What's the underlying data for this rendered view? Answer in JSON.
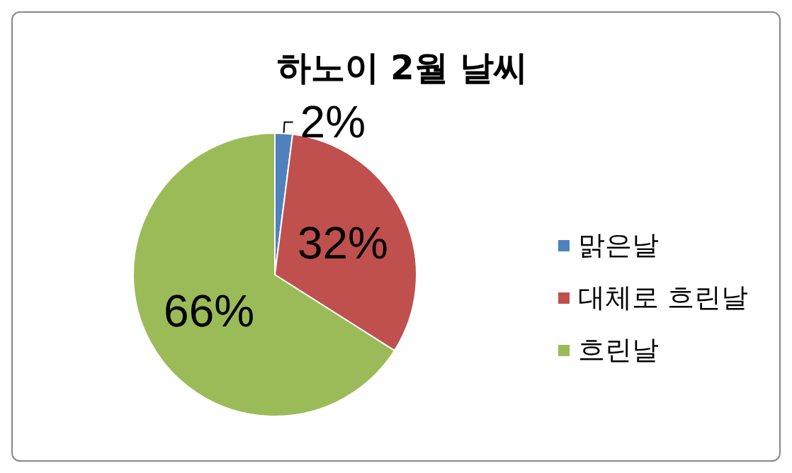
{
  "chart_data": {
    "type": "pie",
    "title": "하노이 2월 날씨",
    "categories": [
      "맑은날",
      "대체로 흐린날",
      "흐린날"
    ],
    "values": [
      2,
      32,
      66
    ],
    "colors": [
      "#4f81bd",
      "#c0504d",
      "#9bbb59"
    ],
    "value_labels": [
      "2%",
      "32%",
      "66%"
    ],
    "legend": "right"
  }
}
